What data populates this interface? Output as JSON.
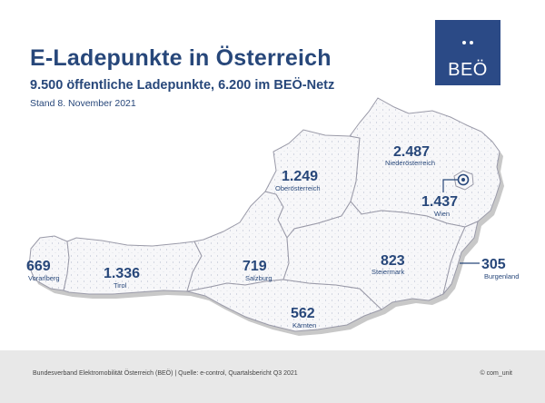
{
  "header": {
    "title": "E-Ladepunkte in Österreich",
    "subtitle": "9.500 öffentliche Ladepunkte, 6.200 im BEÖ-Netz",
    "date": "Stand 8. November 2021"
  },
  "logo": {
    "text": "BEÖ"
  },
  "regions": [
    {
      "id": "vorarlberg",
      "name": "Vorarlberg",
      "value": "669"
    },
    {
      "id": "tirol",
      "name": "Tirol",
      "value": "1.336"
    },
    {
      "id": "salzburg",
      "name": "Salzburg",
      "value": "719"
    },
    {
      "id": "kaernten",
      "name": "Kärnten",
      "value": "562"
    },
    {
      "id": "oberoesterreich",
      "name": "Oberösterreich",
      "value": "1.249"
    },
    {
      "id": "niederoesterreich",
      "name": "Niederösterreich",
      "value": "2.487"
    },
    {
      "id": "wien",
      "name": "Wien",
      "value": "1.437"
    },
    {
      "id": "steiermark",
      "name": "Steiermark",
      "value": "823"
    },
    {
      "id": "burgenland",
      "name": "Burgenland",
      "value": "305"
    }
  ],
  "footer": {
    "source": "Bundesverband Elektromobilität Österreich (BEÖ) | Quelle: e-control, Quartalsbericht Q3 2021",
    "credit": "© com_unit"
  },
  "colors": {
    "brand": "#2b4a86",
    "text": "#27477a",
    "map_fill": "#f7f7f9",
    "map_border": "#9a9aa8",
    "shadow": "#c8c8c8",
    "footer_bg": "#e8e8e8"
  }
}
